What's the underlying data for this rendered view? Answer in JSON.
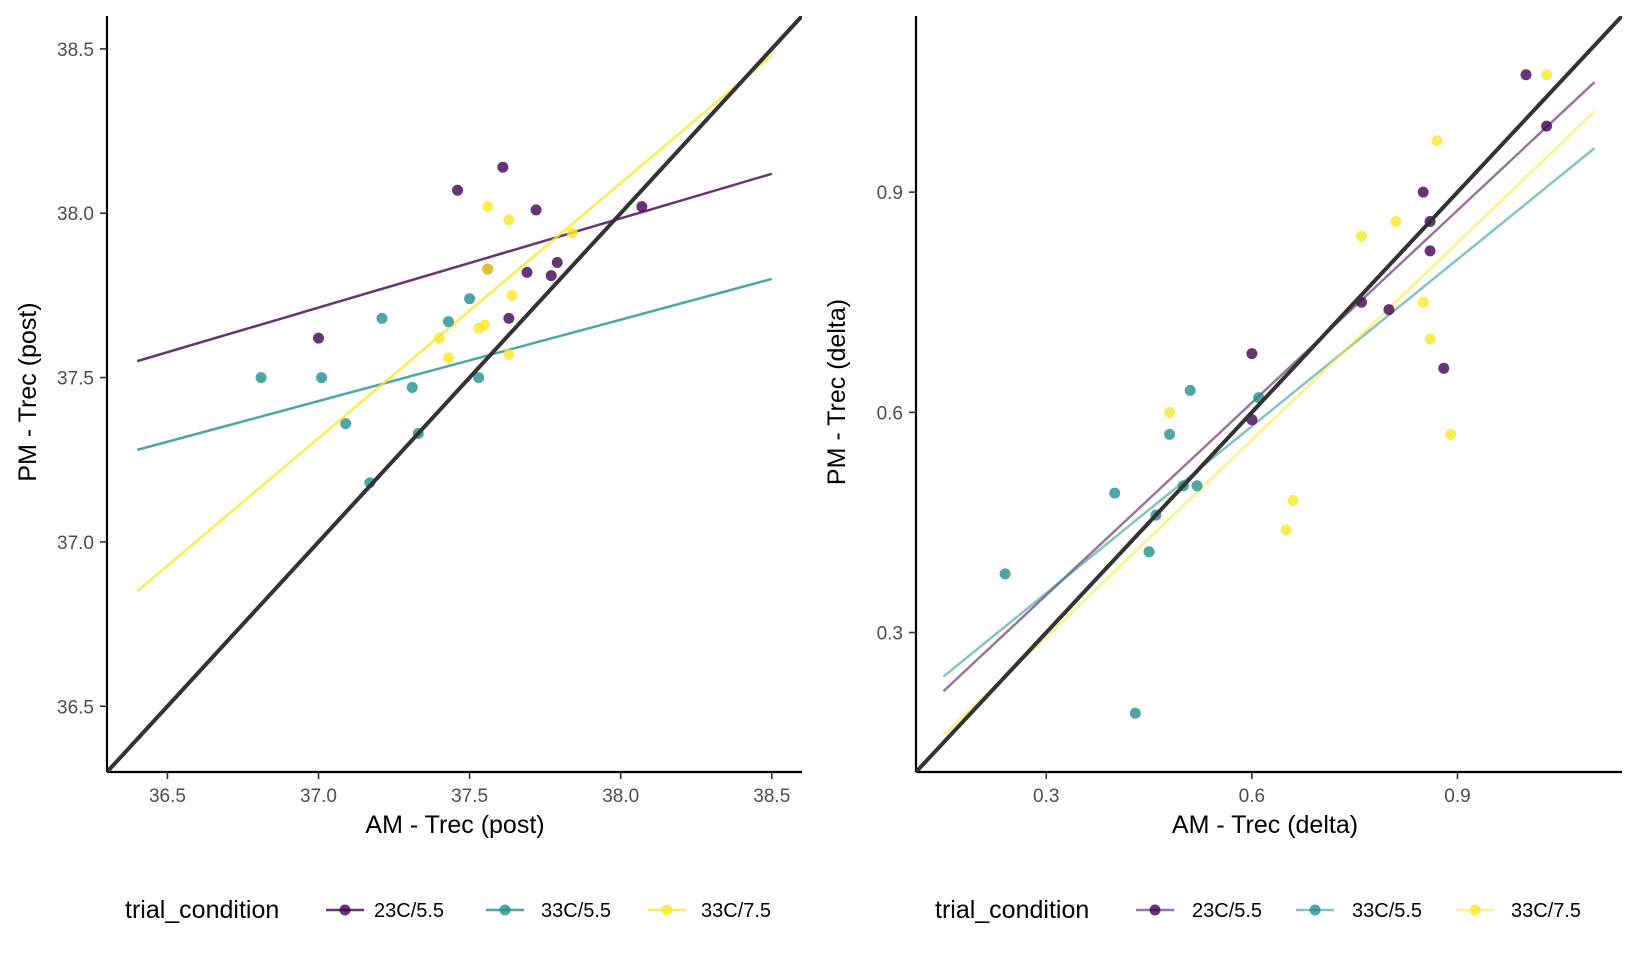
{
  "chart_data": [
    {
      "type": "scatter",
      "xlabel": "AM - Trec (post)",
      "ylabel": "PM - Trec (post)",
      "xlim": [
        36.3,
        38.6
      ],
      "ylim": [
        36.3,
        38.6
      ],
      "x_ticks": [
        36.5,
        37.0,
        37.5,
        38.0,
        38.5
      ],
      "y_ticks": [
        36.5,
        37.0,
        37.5,
        38.0,
        38.5
      ],
      "x_tick_labels": [
        "36.5",
        "37.0",
        "37.5",
        "38.0",
        "38.5"
      ],
      "y_tick_labels": [
        "36.5",
        "37.0",
        "37.5",
        "38.0",
        "38.5"
      ],
      "grid": false,
      "identity_line": true,
      "legend": {
        "title": "trial_condition",
        "position": "bottom"
      },
      "series": [
        {
          "name": "23C/5.5",
          "color": "#440154",
          "points": [
            [
              37.0,
              37.62
            ],
            [
              37.46,
              38.07
            ],
            [
              37.61,
              38.14
            ],
            [
              37.72,
              38.01
            ],
            [
              38.07,
              38.02
            ],
            [
              37.69,
              37.82
            ],
            [
              37.77,
              37.81
            ],
            [
              37.79,
              37.85
            ],
            [
              37.63,
              37.68
            ],
            [
              37.56,
              37.83
            ]
          ],
          "fit_line": [
            [
              36.4,
              37.55
            ],
            [
              38.5,
              38.12
            ]
          ]
        },
        {
          "name": "33C/5.5",
          "color": "#21908C",
          "points": [
            [
              36.81,
              37.5
            ],
            [
              37.01,
              37.5
            ],
            [
              37.09,
              37.36
            ],
            [
              37.21,
              37.68
            ],
            [
              37.31,
              37.47
            ],
            [
              37.33,
              37.33
            ],
            [
              37.17,
              37.18
            ],
            [
              37.43,
              37.67
            ],
            [
              37.5,
              37.74
            ],
            [
              37.53,
              37.5
            ]
          ],
          "fit_line": [
            [
              36.4,
              37.28
            ],
            [
              38.5,
              37.8
            ]
          ]
        },
        {
          "name": "33C/7.5",
          "color": "#FDE725",
          "points": [
            [
              37.56,
              38.02
            ],
            [
              37.63,
              37.98
            ],
            [
              37.84,
              37.94
            ],
            [
              37.56,
              37.83
            ],
            [
              37.64,
              37.75
            ],
            [
              37.4,
              37.62
            ],
            [
              37.53,
              37.65
            ],
            [
              37.55,
              37.66
            ],
            [
              37.43,
              37.56
            ],
            [
              37.63,
              37.57
            ]
          ],
          "fit_line": [
            [
              36.4,
              36.85
            ],
            [
              38.5,
              38.48
            ]
          ]
        }
      ]
    },
    {
      "type": "scatter",
      "xlabel": "AM - Trec (delta)",
      "ylabel": "PM - Trec (delta)",
      "xlim": [
        0.11,
        1.14
      ],
      "ylim": [
        0.11,
        1.14
      ],
      "x_ticks": [
        0.3,
        0.6,
        0.9
      ],
      "y_ticks": [
        0.3,
        0.6,
        0.9
      ],
      "x_tick_labels": [
        "0.3",
        "0.6",
        "0.9"
      ],
      "y_tick_labels": [
        "0.3",
        "0.6",
        "0.9"
      ],
      "grid": false,
      "identity_line": true,
      "legend": {
        "title": "trial_condition",
        "position": "bottom"
      },
      "series": [
        {
          "name": "23C/5.5",
          "color": "#440154",
          "points": [
            [
              1.0,
              1.06
            ],
            [
              1.03,
              0.99
            ],
            [
              0.85,
              0.9
            ],
            [
              0.86,
              0.86
            ],
            [
              0.86,
              0.82
            ],
            [
              0.76,
              0.75
            ],
            [
              0.8,
              0.74
            ],
            [
              0.6,
              0.68
            ],
            [
              0.88,
              0.66
            ],
            [
              0.6,
              0.59
            ]
          ],
          "fit_line": [
            [
              0.15,
              0.22
            ],
            [
              1.1,
              1.05
            ]
          ]
        },
        {
          "name": "33C/5.5",
          "color": "#21908C",
          "points": [
            [
              0.24,
              0.38
            ],
            [
              0.4,
              0.49
            ],
            [
              0.43,
              0.19
            ],
            [
              0.45,
              0.41
            ],
            [
              0.46,
              0.46
            ],
            [
              0.48,
              0.57
            ],
            [
              0.5,
              0.5
            ],
            [
              0.51,
              0.63
            ],
            [
              0.52,
              0.5
            ],
            [
              0.61,
              0.62
            ]
          ],
          "fit_line": [
            [
              0.15,
              0.24
            ],
            [
              1.1,
              0.96
            ]
          ]
        },
        {
          "name": "33C/7.5",
          "color": "#FDE725",
          "points": [
            [
              1.03,
              1.06
            ],
            [
              0.87,
              0.97
            ],
            [
              0.76,
              0.84
            ],
            [
              0.81,
              0.86
            ],
            [
              0.85,
              0.75
            ],
            [
              0.86,
              0.7
            ],
            [
              0.89,
              0.57
            ],
            [
              0.48,
              0.6
            ],
            [
              0.66,
              0.48
            ],
            [
              0.65,
              0.44
            ]
          ],
          "fit_line": [
            [
              0.15,
              0.16
            ],
            [
              1.1,
              1.01
            ]
          ]
        }
      ]
    }
  ]
}
